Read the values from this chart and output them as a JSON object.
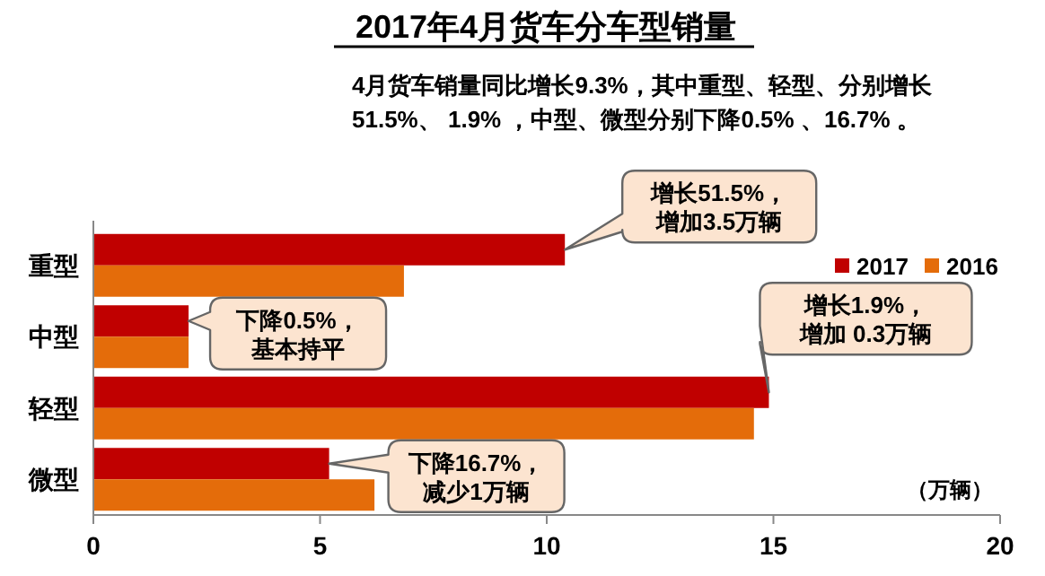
{
  "chart_data": {
    "type": "bar",
    "orientation": "horizontal",
    "title": "2017年4月货车分车型销量",
    "subtitle": "4月货车销量同比增长9.3%，其中重型、轻型、分别增长\n51.5%、 1.9% ，中型、微型分别下降0.5% 、16.7% 。",
    "xlabel": "（万辆）",
    "categories": [
      "重型",
      "中型",
      "轻型",
      "微型"
    ],
    "series": [
      {
        "name": "2017",
        "color": "#c00000",
        "values": [
          10.4,
          2.1,
          14.9,
          5.2
        ]
      },
      {
        "name": "2016",
        "color": "#e46c0a",
        "values": [
          6.85,
          2.1,
          14.57,
          6.2
        ]
      }
    ],
    "xlim": [
      0,
      20
    ],
    "xticks": [
      0,
      5,
      10,
      15,
      20
    ],
    "legend": "top right",
    "grid": false,
    "annotations": [
      "增长51.5%，增加3.5万辆",
      "下降0.5%，基本持平",
      "增长1.9%，增加 0.3万辆",
      "下降16.7%，减少1万辆"
    ]
  }
}
